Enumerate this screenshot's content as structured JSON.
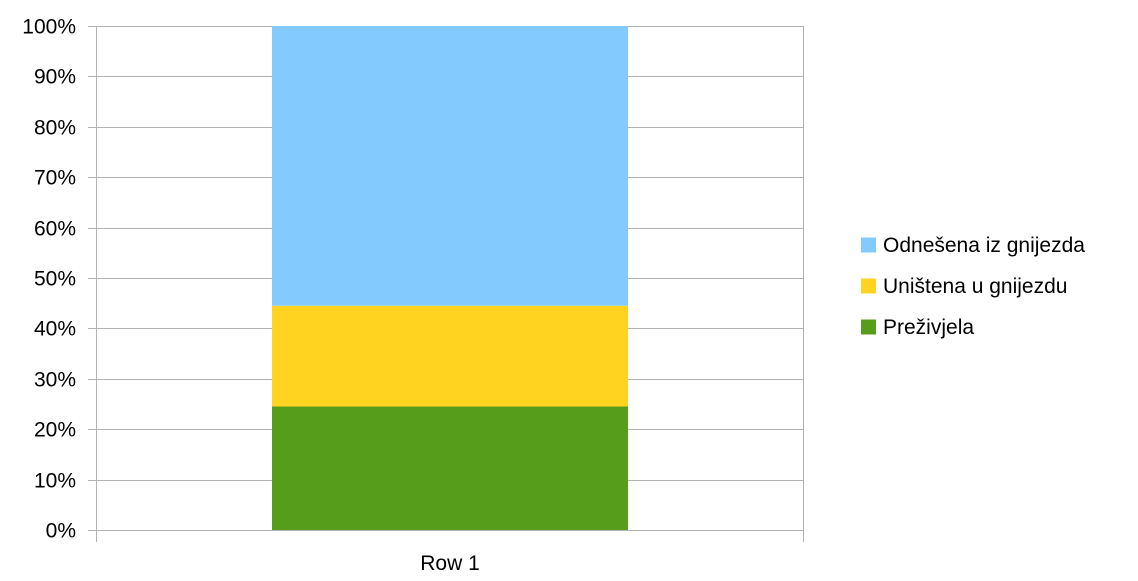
{
  "chart_data": {
    "type": "bar",
    "stacked": true,
    "percent": true,
    "categories": [
      "Row 1"
    ],
    "series": [
      {
        "name": "Preživjela",
        "values": [
          24.5
        ],
        "color": "#579d1c"
      },
      {
        "name": "Uništena u gnijezdu",
        "values": [
          20.0
        ],
        "color": "#ffd320"
      },
      {
        "name": "Odnešena iz gnijezda",
        "values": [
          55.5
        ],
        "color": "#83caff"
      }
    ],
    "yticks": [
      "0%",
      "10%",
      "20%",
      "30%",
      "40%",
      "50%",
      "60%",
      "70%",
      "80%",
      "90%",
      "100%"
    ],
    "ylim": [
      0,
      100
    ],
    "grid": true,
    "legend_position": "right",
    "legend_order": [
      "Odnešena iz gnijezda",
      "Uništena u gnijezdu",
      "Preživjela"
    ]
  }
}
